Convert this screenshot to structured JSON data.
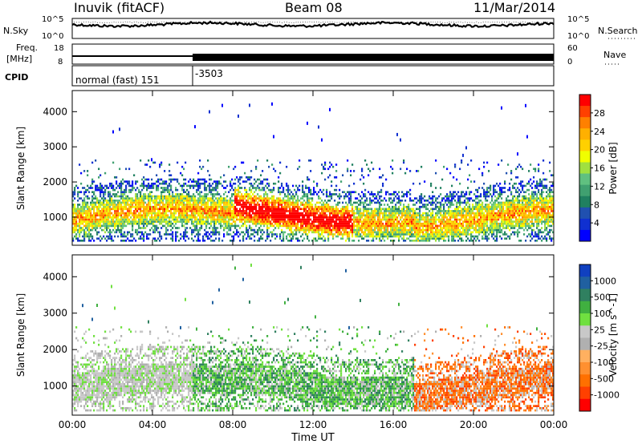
{
  "header": {
    "station": "Inuvik (fitACF)",
    "beam": "Beam 08",
    "date": "11/Mar/2014"
  },
  "summary": {
    "nsky_label": "N.Sky",
    "nsky_ticks": [
      "10^5",
      "10^0"
    ],
    "nsearch_label": "N.Search",
    "nsearch_ticks": [
      "10^5",
      "10^0"
    ],
    "freq_label_line1": "Freq.",
    "freq_label_line2": "[MHz]",
    "freq_ticks": [
      "18",
      "8"
    ],
    "nave_label": "Nave",
    "nave_ticks": [
      "60",
      "0"
    ],
    "cpid_label": "CPID",
    "cpid_segments": [
      {
        "label": "normal (fast) 151",
        "start_hour": 0,
        "end_hour": 6
      },
      {
        "label": "-3503",
        "start_hour": 6,
        "end_hour": 24
      }
    ]
  },
  "chart_data": [
    {
      "type": "heatmap",
      "title": "",
      "xlabel": "Time UT",
      "ylabel": "Slant Range [km]",
      "x_ticks": [
        "00:00",
        "04:00",
        "08:00",
        "12:00",
        "16:00",
        "20:00",
        "00:00"
      ],
      "x_hours": [
        0,
        4,
        8,
        12,
        16,
        20,
        24
      ],
      "y_ticks": [
        1000,
        2000,
        3000,
        4000
      ],
      "xlim": [
        0,
        24
      ],
      "ylim": [
        200,
        4600
      ],
      "colorbar": {
        "label": "Power [dB]",
        "ticks": [
          28,
          24,
          20,
          16,
          12,
          8,
          4
        ],
        "colors": [
          "#ff0000",
          "#ff4000",
          "#ff8000",
          "#ffb000",
          "#ffd000",
          "#f0ff00",
          "#a0e040",
          "#60c080",
          "#40a070",
          "#208060",
          "#2050b0",
          "#1030d0",
          "#0000ff"
        ]
      }
    },
    {
      "type": "heatmap",
      "title": "",
      "xlabel": "Time UT",
      "ylabel": "Slant Range [km]",
      "x_ticks": [
        "00:00",
        "04:00",
        "08:00",
        "12:00",
        "16:00",
        "20:00",
        "00:00"
      ],
      "x_hours": [
        0,
        4,
        8,
        12,
        16,
        20,
        24
      ],
      "y_ticks": [
        1000,
        2000,
        3000,
        4000
      ],
      "xlim": [
        0,
        24
      ],
      "ylim": [
        200,
        4600
      ],
      "colorbar": {
        "label": "Velocity [m s^-1]",
        "ticks": [
          "1000",
          "500",
          "100",
          "25",
          "-25",
          "-100",
          "-500",
          "-1000"
        ],
        "colors": [
          "#1040c0",
          "#2060a0",
          "#308060",
          "#40b040",
          "#70e040",
          "#c8c8c8",
          "#b0b0b0",
          "#ffb060",
          "#ff9030",
          "#ff7000",
          "#ff4000",
          "#ff0000"
        ]
      }
    }
  ],
  "axis_title": "Time UT"
}
